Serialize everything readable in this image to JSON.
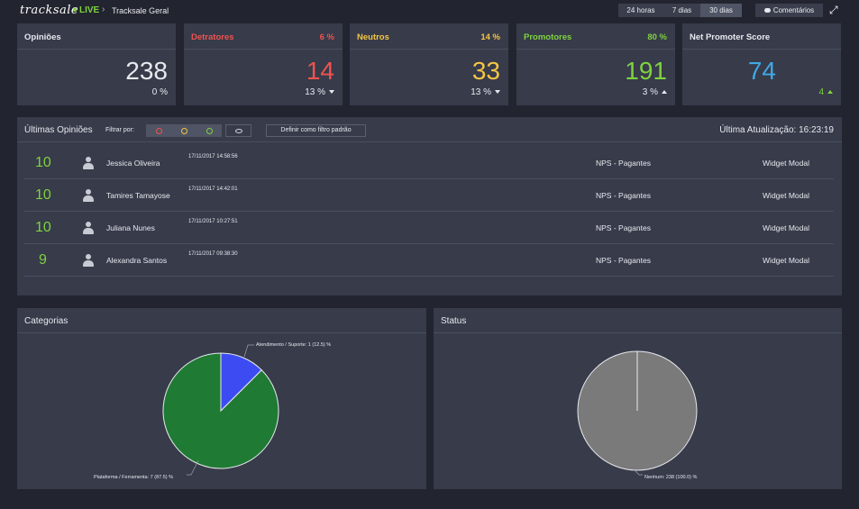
{
  "header": {
    "logo": "tracksale",
    "live": "LIVE",
    "breadcrumb_sep": "›",
    "breadcrumb": "Tracksale Geral",
    "ranges": [
      "24 horas",
      "7 dias",
      "30 dias"
    ],
    "active_range": "30 dias",
    "comments_label": "Comentários"
  },
  "cards": {
    "opinioes": {
      "title": "Opiniões",
      "value": "238",
      "sub": "0 %"
    },
    "detratores": {
      "title": "Detratores",
      "pct": "6 %",
      "value": "14",
      "sub": "13 %",
      "color": "#ef5350"
    },
    "neutros": {
      "title": "Neutros",
      "pct": "14 %",
      "value": "33",
      "sub": "13 %",
      "color": "#f4c542"
    },
    "promotores": {
      "title": "Promotores",
      "pct": "80 %",
      "value": "191",
      "sub": "3 %",
      "color": "#7fd23f"
    },
    "nps": {
      "title": "Net Promoter Score",
      "value": "74",
      "sub": "4",
      "color": "#3fa9e6"
    }
  },
  "opinions": {
    "title": "Últimas Opiniões",
    "filter_label": "Filtrar por:",
    "default_filter_label": "Definir como filtro padrão",
    "updated": "Última Atualização: 16:23:19",
    "rows": [
      {
        "score": "10",
        "name": "Jessica Oliveira",
        "date": "17/11/2017 14:58:56",
        "nps": "NPS - Pagantes",
        "widget": "Widget Modal"
      },
      {
        "score": "10",
        "name": "Tamires Tamayose",
        "date": "17/11/2017 14:42:01",
        "nps": "NPS - Pagantes",
        "widget": "Widget Modal"
      },
      {
        "score": "10",
        "name": "Juliana Nunes",
        "date": "17/11/2017 10:27:51",
        "nps": "NPS - Pagantes",
        "widget": "Widget Modal"
      },
      {
        "score": "9",
        "name": "Alexandra Santos",
        "date": "17/11/2017 09:38:30",
        "nps": "NPS - Pagantes",
        "widget": "Widget Modal"
      }
    ]
  },
  "categorias": {
    "title": "Categorias"
  },
  "status": {
    "title": "Status"
  },
  "chart_data": [
    {
      "type": "pie",
      "title": "Categorias",
      "categories": [
        "Atendimento / Suporte",
        "Plataforma / Ferramenta"
      ],
      "values": [
        1,
        7
      ],
      "percent": [
        12.5,
        87.5
      ],
      "labels": [
        "Atendimento / Suporte: 1 (12.5) %",
        "Plataforma / Ferramenta: 7 (87.5) %"
      ],
      "colors": [
        "#3c4cf2",
        "#1f7a34"
      ]
    },
    {
      "type": "pie",
      "title": "Status",
      "categories": [
        "Nenhum"
      ],
      "values": [
        238
      ],
      "percent": [
        100.0
      ],
      "labels": [
        "Nenhum: 238 (100.0) %"
      ],
      "colors": [
        "#7a7a7a"
      ]
    }
  ]
}
